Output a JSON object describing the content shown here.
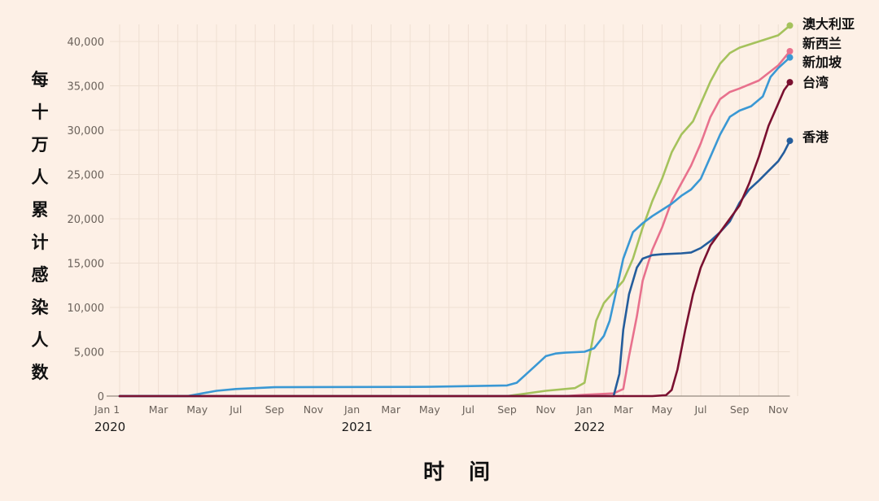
{
  "chart_data": {
    "type": "line",
    "title": "",
    "xlabel": "时间",
    "ylabel": "每十万人累计感染人数",
    "ylim": [
      0,
      40000
    ],
    "yticks": [
      0,
      5000,
      10000,
      15000,
      20000,
      25000,
      30000,
      35000,
      40000
    ],
    "ytick_labels": [
      "0",
      "5,000",
      "10,000",
      "15,000",
      "20,000",
      "25,000",
      "30,000",
      "35,000",
      "40,000"
    ],
    "xtick_labels": [
      "Jan 1",
      "Mar",
      "May",
      "Jul",
      "Sep",
      "Nov",
      "Jan",
      "Mar",
      "May",
      "Jul",
      "Sep",
      "Nov",
      "Jan",
      "Mar",
      "May",
      "Jul",
      "Sep",
      "Nov"
    ],
    "xtick_months": [
      0,
      2,
      4,
      6,
      8,
      10,
      12,
      14,
      16,
      18,
      20,
      22,
      24,
      26,
      28,
      30,
      32,
      34
    ],
    "year_labels": [
      {
        "label": "2020",
        "month": 0
      },
      {
        "label": "2021",
        "month": 12
      },
      {
        "label": "2022",
        "month": 24
      }
    ],
    "x_unit": "months since Jan 1 2020",
    "grid": true,
    "legend_position": "direct labels at line ends (right)",
    "series": [
      {
        "name": "澳大利亚",
        "color": "#a5c25c",
        "points": [
          [
            0,
            0
          ],
          [
            20,
            0
          ],
          [
            20.5,
            150
          ],
          [
            22,
            600
          ],
          [
            23.5,
            900
          ],
          [
            24,
            1500
          ],
          [
            24.3,
            5000
          ],
          [
            24.6,
            8500
          ],
          [
            25,
            10500
          ],
          [
            25.6,
            12000
          ],
          [
            26,
            13000
          ],
          [
            26.5,
            15500
          ],
          [
            27,
            19000
          ],
          [
            27.5,
            22000
          ],
          [
            28,
            24500
          ],
          [
            28.5,
            27500
          ],
          [
            29,
            29500
          ],
          [
            29.6,
            31000
          ],
          [
            30,
            33000
          ],
          [
            30.5,
            35500
          ],
          [
            31,
            37500
          ],
          [
            31.5,
            38700
          ],
          [
            32,
            39300
          ],
          [
            33,
            40000
          ],
          [
            34,
            40700
          ],
          [
            34.6,
            41800
          ]
        ]
      },
      {
        "name": "新西兰",
        "color": "#e8718d",
        "points": [
          [
            0,
            0
          ],
          [
            23,
            0
          ],
          [
            24,
            150
          ],
          [
            25.5,
            300
          ],
          [
            26,
            800
          ],
          [
            26.3,
            4500
          ],
          [
            26.7,
            9000
          ],
          [
            27,
            13000
          ],
          [
            27.5,
            16500
          ],
          [
            28,
            19000
          ],
          [
            28.5,
            22000
          ],
          [
            29,
            24000
          ],
          [
            29.5,
            26000
          ],
          [
            30,
            28500
          ],
          [
            30.5,
            31500
          ],
          [
            31,
            33500
          ],
          [
            31.5,
            34300
          ],
          [
            32,
            34700
          ],
          [
            33,
            35600
          ],
          [
            34,
            37300
          ],
          [
            34.6,
            38900
          ]
        ]
      },
      {
        "name": "新加坡",
        "color": "#3a98d4",
        "points": [
          [
            0,
            0
          ],
          [
            3.5,
            0
          ],
          [
            4,
            200
          ],
          [
            5,
            600
          ],
          [
            6,
            800
          ],
          [
            7,
            900
          ],
          [
            8,
            1000
          ],
          [
            16,
            1050
          ],
          [
            20,
            1200
          ],
          [
            20.5,
            1500
          ],
          [
            21,
            2500
          ],
          [
            21.5,
            3500
          ],
          [
            22,
            4500
          ],
          [
            22.5,
            4800
          ],
          [
            23,
            4900
          ],
          [
            24,
            5000
          ],
          [
            24.5,
            5400
          ],
          [
            25,
            6800
          ],
          [
            25.3,
            8500
          ],
          [
            25.6,
            11500
          ],
          [
            26,
            15500
          ],
          [
            26.5,
            18500
          ],
          [
            27,
            19500
          ],
          [
            27.5,
            20300
          ],
          [
            28,
            21000
          ],
          [
            28.5,
            21700
          ],
          [
            29,
            22600
          ],
          [
            29.5,
            23300
          ],
          [
            30,
            24500
          ],
          [
            30.5,
            27000
          ],
          [
            31,
            29500
          ],
          [
            31.5,
            31500
          ],
          [
            32,
            32200
          ],
          [
            32.6,
            32700
          ],
          [
            33.2,
            33800
          ],
          [
            33.6,
            36000
          ],
          [
            34,
            37000
          ],
          [
            34.6,
            38200
          ]
        ]
      },
      {
        "name": "台湾",
        "color": "#7a1030",
        "points": [
          [
            0,
            0
          ],
          [
            27.5,
            0
          ],
          [
            28.2,
            100
          ],
          [
            28.5,
            700
          ],
          [
            28.8,
            3000
          ],
          [
            29.2,
            7500
          ],
          [
            29.6,
            11500
          ],
          [
            30,
            14500
          ],
          [
            30.5,
            17000
          ],
          [
            31,
            18500
          ],
          [
            31.5,
            20000
          ],
          [
            32,
            21500
          ],
          [
            32.5,
            24000
          ],
          [
            33,
            27000
          ],
          [
            33.5,
            30500
          ],
          [
            34,
            33000
          ],
          [
            34.3,
            34500
          ],
          [
            34.6,
            35400
          ]
        ]
      },
      {
        "name": "香港",
        "color": "#245d9c",
        "points": [
          [
            0,
            0
          ],
          [
            25.5,
            0
          ],
          [
            25.8,
            2500
          ],
          [
            26,
            7500
          ],
          [
            26.3,
            11500
          ],
          [
            26.7,
            14500
          ],
          [
            27,
            15500
          ],
          [
            27.5,
            15900
          ],
          [
            28,
            16000
          ],
          [
            29,
            16100
          ],
          [
            29.5,
            16200
          ],
          [
            30,
            16700
          ],
          [
            30.5,
            17500
          ],
          [
            31,
            18500
          ],
          [
            31.5,
            19700
          ],
          [
            32,
            21800
          ],
          [
            32.5,
            23300
          ],
          [
            33,
            24300
          ],
          [
            33.5,
            25400
          ],
          [
            34,
            26500
          ],
          [
            34.3,
            27500
          ],
          [
            34.6,
            28800
          ]
        ]
      }
    ]
  },
  "labels": {
    "ylabel_chars": [
      "每",
      "十",
      "万",
      "人",
      "累",
      "计",
      "感",
      "染",
      "人",
      "数"
    ],
    "xtitle": "时间"
  }
}
